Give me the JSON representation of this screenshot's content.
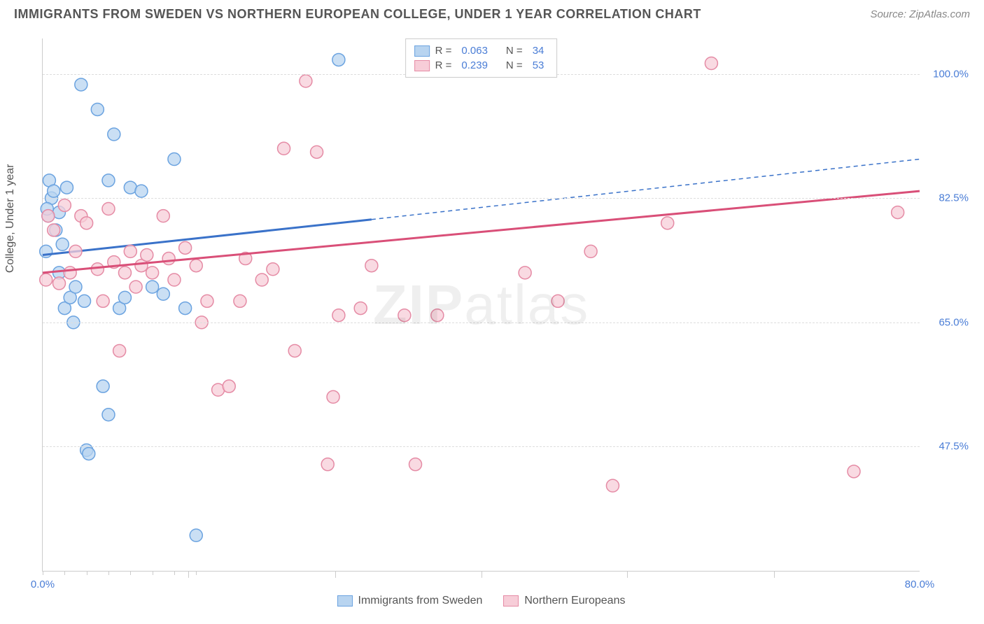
{
  "header": {
    "title": "IMMIGRANTS FROM SWEDEN VS NORTHERN EUROPEAN COLLEGE, UNDER 1 YEAR CORRELATION CHART",
    "source": "Source: ZipAtlas.com"
  },
  "chart": {
    "type": "scatter",
    "ylabel": "College, Under 1 year",
    "watermark": "ZIPatlas",
    "background_color": "#ffffff",
    "grid_color": "#dddddd",
    "axis_color": "#cccccc",
    "label_color": "#555555",
    "tick_color": "#4a7dd6",
    "xlim": [
      0,
      80
    ],
    "ylim": [
      30,
      105
    ],
    "yticks": [
      {
        "value": 47.5,
        "label": "47.5%"
      },
      {
        "value": 65.0,
        "label": "65.0%"
      },
      {
        "value": 82.5,
        "label": "82.5%"
      },
      {
        "value": 100.0,
        "label": "100.0%"
      }
    ],
    "xticks_major": [
      {
        "value": 0,
        "label": "0.0%"
      },
      {
        "value": 80,
        "label": "80.0%"
      }
    ],
    "xticks_minor_step": 2,
    "xticks_mid": [
      13.3,
      26.7,
      40,
      53.3,
      66.7
    ],
    "series": [
      {
        "name": "Immigrants from Sweden",
        "color_fill": "#b8d4f0",
        "color_stroke": "#6ba3e0",
        "marker_radius": 9,
        "marker_opacity": 0.75,
        "R": "0.063",
        "N": "34",
        "trend": {
          "x1": 0,
          "y1": 74.5,
          "x2": 30,
          "y2": 79.5,
          "x2_dash": 80,
          "y2_dash": 88,
          "color": "#3a72c9",
          "width": 3
        },
        "points": [
          [
            0.5,
            80
          ],
          [
            0.6,
            85
          ],
          [
            0.8,
            82.5
          ],
          [
            1,
            83.5
          ],
          [
            1.2,
            78
          ],
          [
            1.5,
            80.5
          ],
          [
            2,
            67
          ],
          [
            2.2,
            84
          ],
          [
            2.5,
            68.5
          ],
          [
            3,
            70
          ],
          [
            3.5,
            98.5
          ],
          [
            3.8,
            68
          ],
          [
            4,
            47
          ],
          [
            4.2,
            46.5
          ],
          [
            5,
            95
          ],
          [
            5.5,
            56
          ],
          [
            6,
            52
          ],
          [
            6,
            85
          ],
          [
            6.5,
            91.5
          ],
          [
            7,
            67
          ],
          [
            7.5,
            68.5
          ],
          [
            8,
            84
          ],
          [
            9,
            83.5
          ],
          [
            10,
            70
          ],
          [
            11,
            69
          ],
          [
            12,
            88
          ],
          [
            13,
            67
          ],
          [
            14,
            35
          ],
          [
            1.5,
            72
          ],
          [
            2.8,
            65
          ],
          [
            0.3,
            75
          ],
          [
            0.4,
            81
          ],
          [
            1.8,
            76
          ],
          [
            27,
            102
          ]
        ]
      },
      {
        "name": "Northern Europeans",
        "color_fill": "#f7cdd8",
        "color_stroke": "#e58ba5",
        "marker_radius": 9,
        "marker_opacity": 0.75,
        "R": "0.239",
        "N": "53",
        "trend": {
          "x1": 0,
          "y1": 72,
          "x2": 80,
          "y2": 83.5,
          "x2_dash": 80,
          "y2_dash": 83.5,
          "color": "#d94f78",
          "width": 3
        },
        "points": [
          [
            0.3,
            71
          ],
          [
            0.5,
            80
          ],
          [
            1,
            78
          ],
          [
            1.5,
            70.5
          ],
          [
            2,
            81.5
          ],
          [
            2.5,
            72
          ],
          [
            3,
            75
          ],
          [
            3.5,
            80
          ],
          [
            4,
            79
          ],
          [
            5,
            72.5
          ],
          [
            5.5,
            68
          ],
          [
            6,
            81
          ],
          [
            6.5,
            73.5
          ],
          [
            7,
            61
          ],
          [
            7.5,
            72
          ],
          [
            8,
            75
          ],
          [
            8.5,
            70
          ],
          [
            9,
            73
          ],
          [
            9.5,
            74.5
          ],
          [
            10,
            72
          ],
          [
            11,
            80
          ],
          [
            11.5,
            74
          ],
          [
            12,
            71
          ],
          [
            13,
            75.5
          ],
          [
            14,
            73
          ],
          [
            14.5,
            65
          ],
          [
            15,
            68
          ],
          [
            16,
            55.5
          ],
          [
            17,
            56
          ],
          [
            18,
            68
          ],
          [
            18.5,
            74
          ],
          [
            20,
            71
          ],
          [
            21,
            72.5
          ],
          [
            22,
            89.5
          ],
          [
            23,
            61
          ],
          [
            24,
            99
          ],
          [
            25,
            89
          ],
          [
            26,
            45
          ],
          [
            26.5,
            54.5
          ],
          [
            27,
            66
          ],
          [
            29,
            67
          ],
          [
            30,
            73
          ],
          [
            33,
            66
          ],
          [
            34,
            45
          ],
          [
            36,
            66
          ],
          [
            44,
            72
          ],
          [
            47,
            68
          ],
          [
            50,
            75
          ],
          [
            52,
            42
          ],
          [
            57,
            79
          ],
          [
            61,
            101.5
          ],
          [
            74,
            44
          ],
          [
            78,
            80.5
          ]
        ]
      }
    ],
    "legend_top": {
      "rows": [
        {
          "swatch_fill": "#b8d4f0",
          "swatch_stroke": "#6ba3e0",
          "r_label": "R =",
          "r_value": "0.063",
          "n_label": "N =",
          "n_value": "34"
        },
        {
          "swatch_fill": "#f7cdd8",
          "swatch_stroke": "#e58ba5",
          "r_label": "R =",
          "r_value": "0.239",
          "n_label": "N =",
          "n_value": "53"
        }
      ]
    },
    "legend_bottom": {
      "items": [
        {
          "swatch_fill": "#b8d4f0",
          "swatch_stroke": "#6ba3e0",
          "label": "Immigrants from Sweden"
        },
        {
          "swatch_fill": "#f7cdd8",
          "swatch_stroke": "#e58ba5",
          "label": "Northern Europeans"
        }
      ]
    }
  }
}
